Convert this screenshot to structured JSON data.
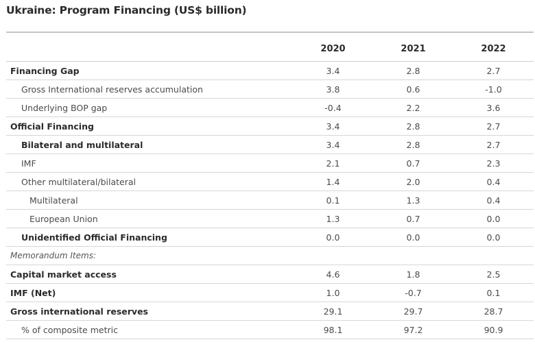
{
  "title": "Ukraine: Program Financing (US$ billion)",
  "columns": [
    "2020",
    "2021",
    "2022"
  ],
  "rows": [
    {
      "label": "Financing Gap",
      "values": [
        "3.4",
        "2.8",
        "2.7"
      ]
    },
    {
      "label": "Gross International reserves accumulation",
      "values": [
        "3.8",
        "0.6",
        "-1.0"
      ]
    },
    {
      "label": "Underlying BOP gap",
      "values": [
        "-0.4",
        "2.2",
        "3.6"
      ]
    },
    {
      "label": "Official Financing",
      "values": [
        "3.4",
        "2.8",
        "2.7"
      ]
    },
    {
      "label": "Bilateral and multilateral",
      "values": [
        "3.4",
        "2.8",
        "2.7"
      ]
    },
    {
      "label": "IMF",
      "values": [
        "2.1",
        "0.7",
        "2.3"
      ]
    },
    {
      "label": "Other multilateral/bilateral",
      "values": [
        "1.4",
        "2.0",
        "0.4"
      ]
    },
    {
      "label": "Multilateral",
      "values": [
        "0.1",
        "1.3",
        "0.4"
      ]
    },
    {
      "label": "European Union",
      "values": [
        "1.3",
        "0.7",
        "0.0"
      ]
    },
    {
      "label": "Unidentified Official Financing",
      "values": [
        "0.0",
        "0.0",
        "0.0"
      ]
    },
    {
      "label": "Memorandum Items:",
      "values": [
        "",
        "",
        ""
      ]
    },
    {
      "label": "Capital market access",
      "values": [
        "4.6",
        "1.8",
        "2.5"
      ]
    },
    {
      "label": "IMF (Net)",
      "values": [
        "1.0",
        "-0.7",
        "0.1"
      ]
    },
    {
      "label": "Gross international reserves",
      "values": [
        "29.1",
        "29.7",
        "28.7"
      ]
    },
    {
      "label": "% of composite metric",
      "values": [
        "98.1",
        "97.2",
        "90.9"
      ]
    }
  ]
}
